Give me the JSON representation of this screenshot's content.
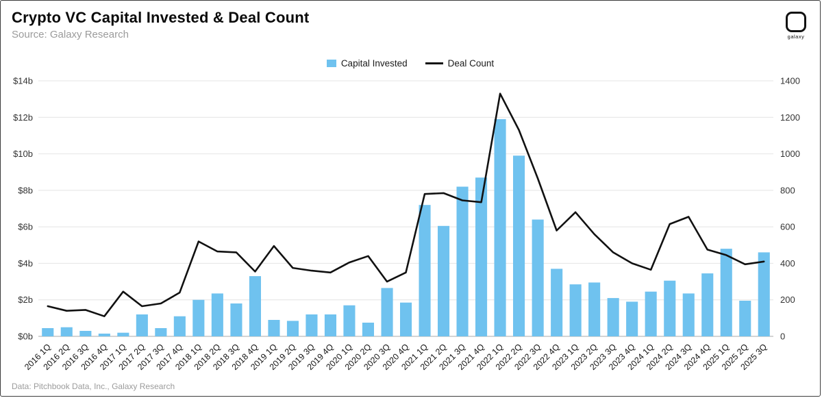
{
  "header": {
    "title": "Crypto VC Capital Invested & Deal Count",
    "subtitle": "Source: Galaxy Research",
    "logo_label": "galaxy"
  },
  "footer": {
    "credit": "Data: Pitchbook Data, Inc., Galaxy Research"
  },
  "colors": {
    "bar": "#6FC2EF",
    "line": "#111111",
    "grid": "#e4e4e4",
    "axis": "#aaaaaa",
    "text": "#333333"
  },
  "chart_data": {
    "type": "bar",
    "title": "Crypto VC Capital Invested & Deal Count",
    "legend_position": "top",
    "grid": true,
    "categories": [
      "2016 1Q",
      "2016 2Q",
      "2016 3Q",
      "2016 4Q",
      "2017 1Q",
      "2017 2Q",
      "2017 3Q",
      "2017 4Q",
      "2018 1Q",
      "2018 2Q",
      "2018 3Q",
      "2018 4Q",
      "2019 1Q",
      "2019 2Q",
      "2019 3Q",
      "2019 4Q",
      "2020 1Q",
      "2020 2Q",
      "2020 3Q",
      "2020 4Q",
      "2021 1Q",
      "2021 2Q",
      "2021 3Q",
      "2021 4Q",
      "2022 1Q",
      "2022 2Q",
      "2022 3Q",
      "2022 4Q",
      "2023 1Q",
      "2023 2Q",
      "2023 3Q",
      "2023 4Q",
      "2024 1Q",
      "2024 2Q",
      "2024 3Q",
      "2024 4Q",
      "2025 1Q",
      "2025 2Q",
      "2025 3Q"
    ],
    "series": [
      {
        "name": "Capital Invested",
        "type": "bar",
        "axis": "left",
        "unit": "$b",
        "values": [
          0.45,
          0.5,
          0.3,
          0.15,
          0.2,
          1.2,
          0.45,
          1.1,
          2.0,
          2.35,
          1.8,
          3.3,
          0.9,
          0.85,
          1.2,
          1.2,
          1.7,
          0.75,
          2.65,
          1.85,
          7.2,
          6.05,
          8.2,
          8.7,
          11.9,
          9.9,
          6.4,
          3.7,
          2.85,
          2.95,
          2.1,
          1.9,
          2.45,
          3.05,
          2.35,
          3.45,
          4.8,
          1.95,
          4.6
        ]
      },
      {
        "name": "Deal Count",
        "type": "line",
        "axis": "right",
        "unit": "deals",
        "values": [
          165,
          140,
          145,
          110,
          245,
          165,
          180,
          240,
          520,
          465,
          460,
          355,
          495,
          375,
          360,
          350,
          405,
          440,
          300,
          350,
          780,
          785,
          745,
          735,
          1330,
          1130,
          865,
          580,
          680,
          560,
          460,
          400,
          365,
          615,
          655,
          475,
          445,
          395,
          410
        ]
      }
    ],
    "left_axis": {
      "min": 0,
      "max": 14,
      "tick_step": 2,
      "tick_labels": [
        "$0b",
        "$2b",
        "$4b",
        "$6b",
        "$8b",
        "$10b",
        "$12b",
        "$14b"
      ]
    },
    "right_axis": {
      "min": 0,
      "max": 1400,
      "tick_step": 200,
      "tick_labels": [
        "0",
        "200",
        "400",
        "600",
        "800",
        "1000",
        "1200",
        "1400"
      ]
    }
  }
}
